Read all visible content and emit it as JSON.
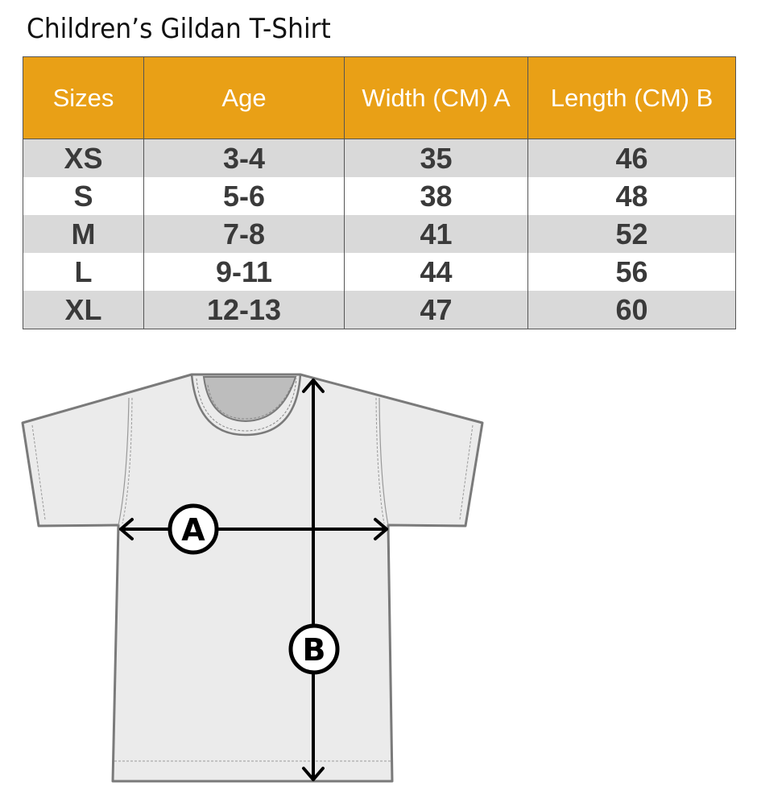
{
  "title": "Children’s Gildan T-Shirt",
  "table": {
    "headers": [
      "Sizes",
      "Age",
      "Width (CM) A",
      "Length  (CM) B"
    ],
    "rows": [
      [
        "XS",
        "3-4",
        "35",
        "46"
      ],
      [
        "S",
        "5-6",
        "38",
        "48"
      ],
      [
        "M",
        "7-8",
        "41",
        "52"
      ],
      [
        "L",
        "9-11",
        "44",
        "56"
      ],
      [
        "XL",
        "12-13",
        "47",
        "60"
      ]
    ]
  },
  "diagram": {
    "label_a": "A",
    "label_b": "B"
  },
  "colors": {
    "header_bg": "#e9a016",
    "row_alt_bg": "#d9d9d9",
    "shirt_fill": "#ebebeb",
    "shirt_outline": "#7a7a7a"
  }
}
